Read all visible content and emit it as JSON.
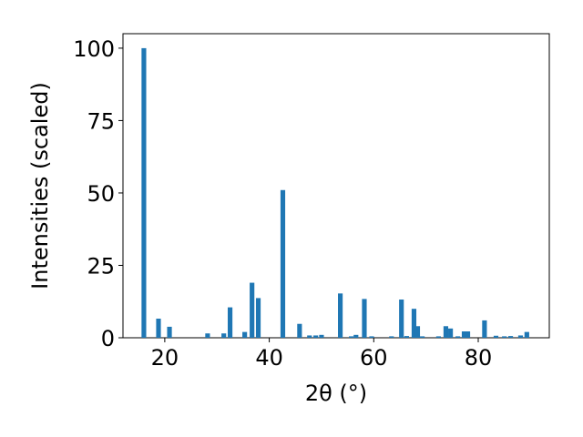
{
  "chart_data": {
    "type": "bar",
    "xlabel": "2θ (°)",
    "ylabel": "Intensities (scaled)",
    "x": [
      16.0,
      18.8,
      20.9,
      28.2,
      31.3,
      32.5,
      35.3,
      36.7,
      37.9,
      42.6,
      45.8,
      47.7,
      48.9,
      50.0,
      53.6,
      55.7,
      56.6,
      58.2,
      59.6,
      63.4,
      65.3,
      66.3,
      67.7,
      68.4,
      69.3,
      72.4,
      73.8,
      74.7,
      76.1,
      77.3,
      78.0,
      81.2,
      83.4,
      85.0,
      86.2,
      88.1,
      89.3
    ],
    "values": [
      100,
      6.6,
      3.8,
      1.5,
      1.5,
      10.5,
      2,
      19,
      13.7,
      51,
      4.8,
      0.8,
      0.8,
      1,
      15.3,
      0.5,
      1,
      13.4,
      0.5,
      0.5,
      13.2,
      0.6,
      10,
      4,
      0.5,
      0.5,
      4,
      3.2,
      0.5,
      2.2,
      2.2,
      6,
      0.7,
      0.5,
      0.6,
      0.8,
      2
    ],
    "color": "#1f77b4",
    "xlim": [
      12.0,
      93.6
    ],
    "xticks": [
      20,
      40,
      60,
      80
    ],
    "ylim": [
      0,
      105
    ],
    "yticks": [
      0,
      25,
      50,
      75,
      100
    ]
  }
}
